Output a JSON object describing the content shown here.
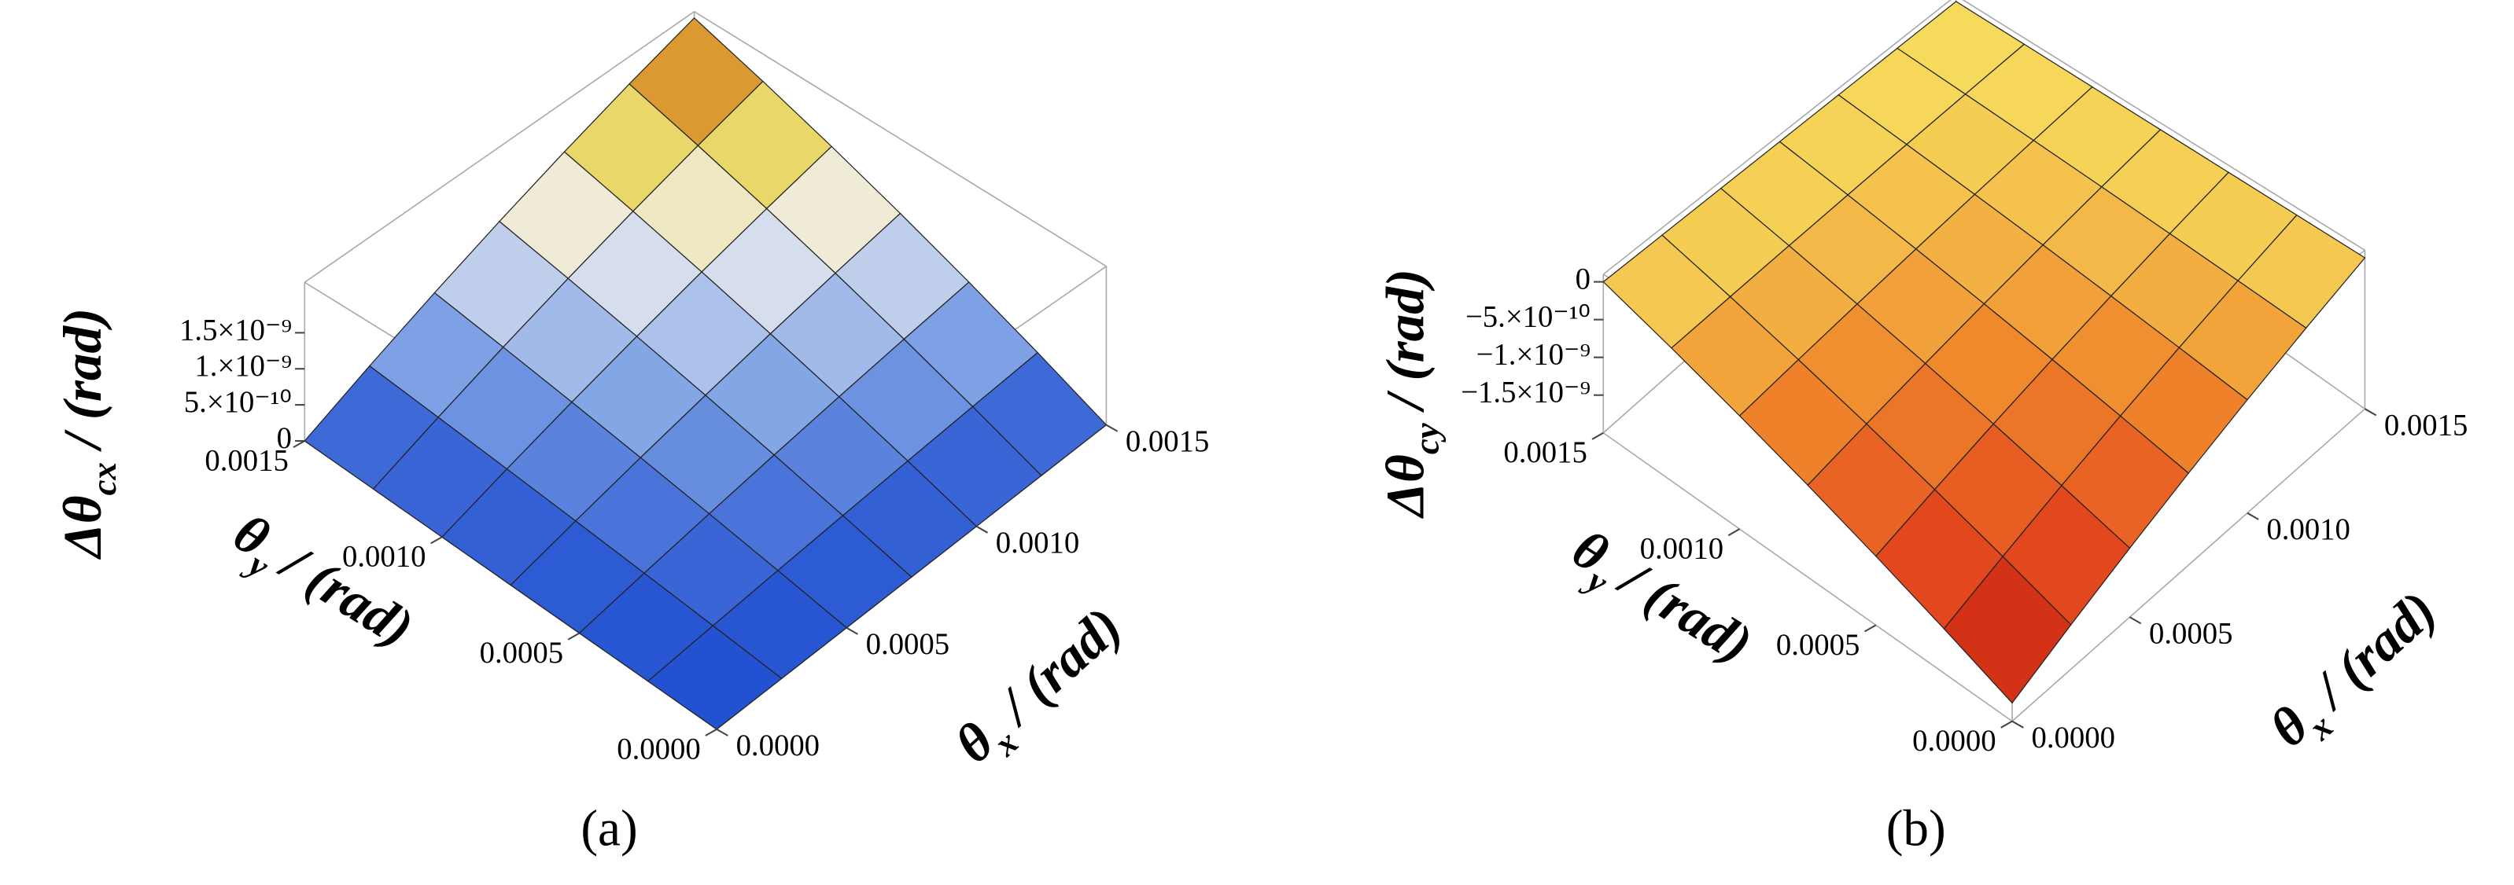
{
  "chart_data": [
    {
      "type": "surface",
      "caption": "(a)",
      "x": [
        0,
        0.00025,
        0.0005,
        0.00075,
        0.001,
        0.00125,
        0.0015
      ],
      "y": [
        0,
        0.00025,
        0.0005,
        0.00075,
        0.001,
        0.00125,
        0.0015
      ],
      "z": [
        [
          0,
          0,
          0,
          0,
          0,
          0,
          0
        ],
        [
          0,
          5.8e-11,
          1.16e-10,
          1.74e-10,
          2.32e-10,
          2.9e-10,
          3.48e-10
        ],
        [
          0,
          1.16e-10,
          2.32e-10,
          3.48e-10,
          4.64e-10,
          5.8e-10,
          6.96e-10
        ],
        [
          0,
          1.74e-10,
          3.48e-10,
          5.22e-10,
          6.96e-10,
          8.7e-10,
          1.044e-09
        ],
        [
          0,
          2.32e-10,
          4.64e-10,
          6.96e-10,
          9.28e-10,
          1.16e-09,
          1.392e-09
        ],
        [
          0,
          2.9e-10,
          5.8e-10,
          8.7e-10,
          1.16e-09,
          1.45e-09,
          1.74e-09
        ],
        [
          0,
          3.48e-10,
          6.96e-10,
          1.044e-09,
          1.392e-09,
          1.74e-09,
          2.088e-09
        ]
      ],
      "xlim": [
        0,
        0.0015
      ],
      "ylim": [
        0,
        0.0015
      ],
      "zlim": [
        0,
        2.2e-09
      ],
      "xticks": [
        {
          "value": 0,
          "label": "0.0000"
        },
        {
          "value": 0.0005,
          "label": "0.0005"
        },
        {
          "value": 0.001,
          "label": "0.0010"
        },
        {
          "value": 0.0015,
          "label": "0.0015"
        }
      ],
      "yticks": [
        {
          "value": 0,
          "label": "0.0000"
        },
        {
          "value": 0.0005,
          "label": "0.0005"
        },
        {
          "value": 0.001,
          "label": "0.0010"
        },
        {
          "value": 0.0015,
          "label": "0.0015"
        }
      ],
      "zticks": [
        0,
        {
          "value": 5e-10,
          "label": "5.×10⁻¹⁰"
        },
        {
          "value": 1e-09,
          "label": "1.×10⁻⁹"
        },
        {
          "value": 1.5e-09,
          "label": "1.5×10⁻⁹"
        }
      ],
      "xlabel": {
        "text": "θ",
        "sub": "x",
        "unit": " / (rad)"
      },
      "ylabel": {
        "text": "θ",
        "sub": "y",
        "unit": " / (rad)"
      },
      "zlabel": {
        "text": "Δθ",
        "sub": "cx",
        "unit": " / (rad)"
      },
      "colormap": [
        "#1f4fd0",
        "#86a8e6",
        "#f0f0f0",
        "#e6cf3c",
        "#c83a20"
      ]
    },
    {
      "type": "surface",
      "caption": "(b)",
      "x": [
        0,
        0.00025,
        0.0005,
        0.00075,
        0.001,
        0.00125,
        0.0015
      ],
      "y": [
        0,
        0.00025,
        0.0005,
        0.00075,
        0.001,
        0.00125,
        0.0015
      ],
      "z": [
        [
          -1.8e-09,
          -1.5e-09,
          -1.2e-09,
          -9e-10,
          -6e-10,
          -3e-10,
          0
        ],
        [
          -1.5e-09,
          -1.25e-09,
          -1e-09,
          -7.5e-10,
          -5e-10,
          -2.5e-10,
          0
        ],
        [
          -1.2e-09,
          -1e-09,
          -8e-10,
          -6e-10,
          -4e-10,
          -2e-10,
          0
        ],
        [
          -9e-10,
          -7.5e-10,
          -6e-10,
          -4.5e-10,
          -3e-10,
          -1.5e-10,
          0
        ],
        [
          -6e-10,
          -5e-10,
          -4e-10,
          -3e-10,
          -2e-10,
          -1e-10,
          0
        ],
        [
          -3e-10,
          -2.5e-10,
          -2e-10,
          -1.5e-10,
          -1e-10,
          -5e-11,
          0
        ],
        [
          0,
          0,
          0,
          0,
          0,
          0,
          0
        ]
      ],
      "xlim": [
        0,
        0.0015
      ],
      "ylim": [
        0,
        0.0015
      ],
      "zlim": [
        -2e-09,
        1e-10
      ],
      "xticks": [
        {
          "value": 0,
          "label": "0.0000"
        },
        {
          "value": 0.0005,
          "label": "0.0005"
        },
        {
          "value": 0.001,
          "label": "0.0010"
        },
        {
          "value": 0.0015,
          "label": "0.0015"
        }
      ],
      "yticks": [
        {
          "value": 0,
          "label": "0.0000"
        },
        {
          "value": 0.0005,
          "label": "0.0005"
        },
        {
          "value": 0.001,
          "label": "0.0010"
        },
        {
          "value": 0.0015,
          "label": "0.0015"
        }
      ],
      "zticks": [
        0,
        {
          "value": -5e-10,
          "label": "−5.×10⁻¹⁰"
        },
        {
          "value": -1e-09,
          "label": "−1.×10⁻⁹"
        },
        {
          "value": -1.5e-09,
          "label": "−1.5×10⁻⁹"
        }
      ],
      "xlabel": {
        "text": "θ",
        "sub": "x",
        "unit": " / (rad)"
      },
      "ylabel": {
        "text": "θ",
        "sub": "y",
        "unit": " / (rad)"
      },
      "zlabel": {
        "text": "Δθ",
        "sub": "cy",
        "unit": " / (rad)"
      },
      "colormap": [
        "#c41c10",
        "#e44a1e",
        "#f08a2c",
        "#f6dc5c"
      ]
    }
  ]
}
